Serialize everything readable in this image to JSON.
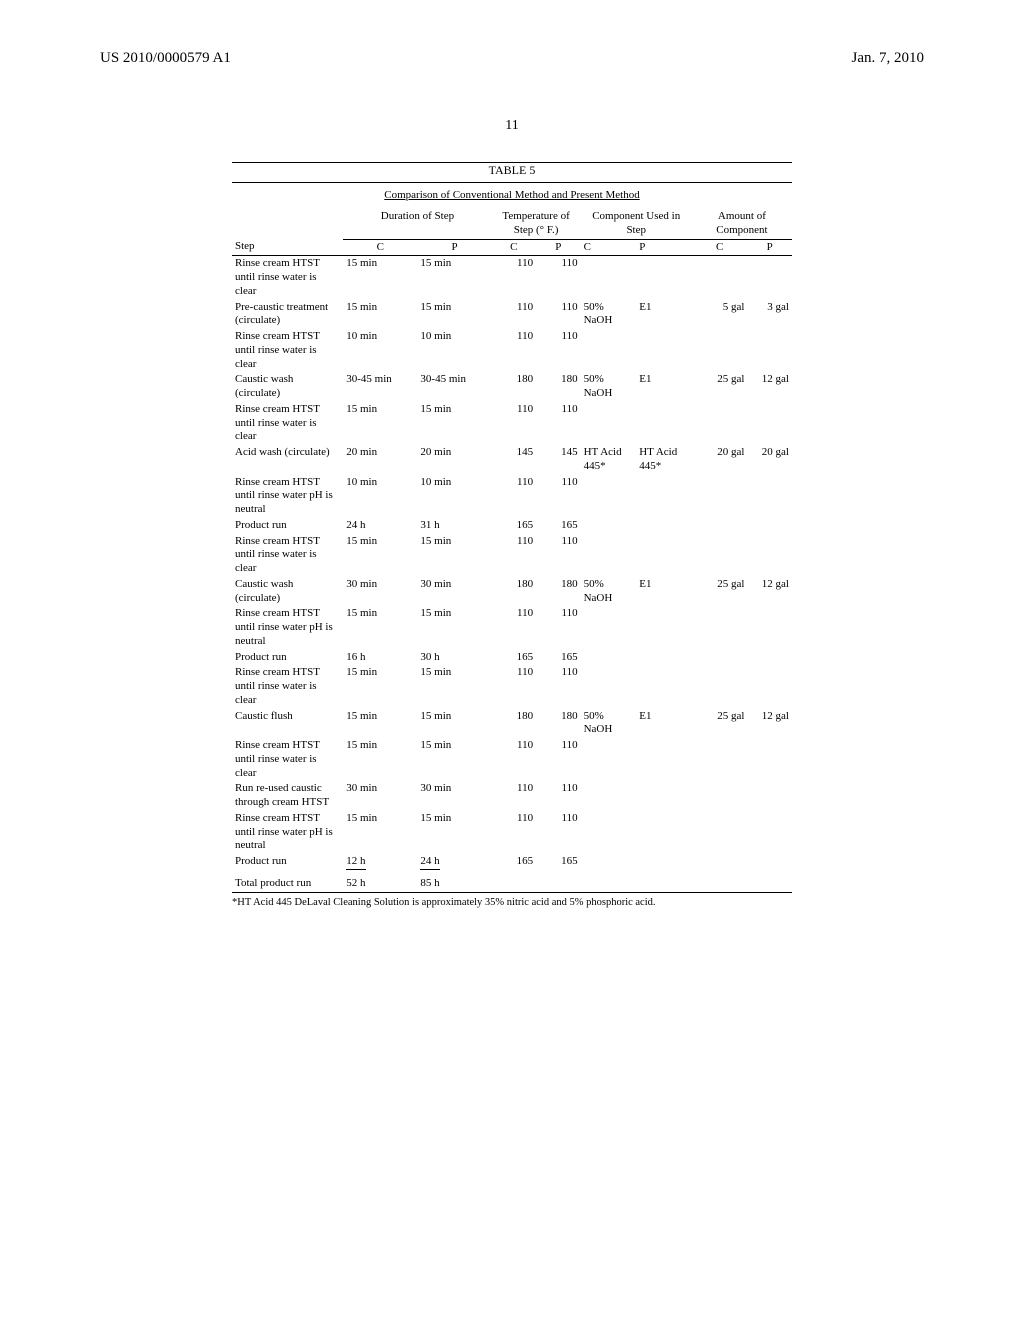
{
  "header": {
    "left": "US 2010/0000579 A1",
    "right": "Jan. 7, 2010"
  },
  "page_number": "11",
  "table": {
    "label": "TABLE 5",
    "caption": "Comparison of Conventional Method and Present Method",
    "group_headers": {
      "duration": "Duration of Step",
      "temperature": "Temperature of Step (° F.)",
      "component": "Component Used in Step",
      "amount": "Amount of Component"
    },
    "col_headers": {
      "step": "Step",
      "c": "C",
      "p": "P"
    },
    "rows": [
      {
        "step": "Rinse cream HTST until rinse water is clear",
        "dc": "15 min",
        "dp": "15 min",
        "tc": "110",
        "tp": "110",
        "cc": "",
        "cp": "",
        "ac": "",
        "ap": ""
      },
      {
        "step": "Pre-caustic treatment (circulate)",
        "dc": "15 min",
        "dp": "15 min",
        "tc": "110",
        "tp": "110",
        "cc": "50% NaOH",
        "cp": "E1",
        "ac": "5 gal",
        "ap": "3 gal"
      },
      {
        "step": "Rinse cream HTST until rinse water is clear",
        "dc": "10 min",
        "dp": "10 min",
        "tc": "110",
        "tp": "110",
        "cc": "",
        "cp": "",
        "ac": "",
        "ap": ""
      },
      {
        "step": "Caustic wash (circulate)",
        "dc": "30-45 min",
        "dp": "30-45 min",
        "tc": "180",
        "tp": "180",
        "cc": "50% NaOH",
        "cp": "E1",
        "ac": "25 gal",
        "ap": "12 gal"
      },
      {
        "step": "Rinse cream HTST until rinse water is clear",
        "dc": "15 min",
        "dp": "15 min",
        "tc": "110",
        "tp": "110",
        "cc": "",
        "cp": "",
        "ac": "",
        "ap": ""
      },
      {
        "step": "Acid wash (circulate)",
        "dc": "20 min",
        "dp": "20 min",
        "tc": "145",
        "tp": "145",
        "cc": "HT Acid 445*",
        "cp": "HT Acid 445*",
        "ac": "20 gal",
        "ap": "20 gal"
      },
      {
        "step": "Rinse cream HTST until rinse water pH is neutral",
        "dc": "10 min",
        "dp": "10 min",
        "tc": "110",
        "tp": "110",
        "cc": "",
        "cp": "",
        "ac": "",
        "ap": ""
      },
      {
        "step": "Product run",
        "dc": "24 h",
        "dp": "31 h",
        "tc": "165",
        "tp": "165",
        "cc": "",
        "cp": "",
        "ac": "",
        "ap": ""
      },
      {
        "step": "Rinse cream HTST until rinse water is clear",
        "dc": "15 min",
        "dp": "15 min",
        "tc": "110",
        "tp": "110",
        "cc": "",
        "cp": "",
        "ac": "",
        "ap": ""
      },
      {
        "step": "Caustic wash (circulate)",
        "dc": "30 min",
        "dp": "30 min",
        "tc": "180",
        "tp": "180",
        "cc": "50% NaOH",
        "cp": "E1",
        "ac": "25 gal",
        "ap": "12 gal"
      },
      {
        "step": "Rinse cream HTST until rinse water pH is neutral",
        "dc": "15 min",
        "dp": "15 min",
        "tc": "110",
        "tp": "110",
        "cc": "",
        "cp": "",
        "ac": "",
        "ap": ""
      },
      {
        "step": "Product run",
        "dc": "16 h",
        "dp": "30 h",
        "tc": "165",
        "tp": "165",
        "cc": "",
        "cp": "",
        "ac": "",
        "ap": ""
      },
      {
        "step": "Rinse cream HTST until rinse water is clear",
        "dc": "15 min",
        "dp": "15 min",
        "tc": "110",
        "tp": "110",
        "cc": "",
        "cp": "",
        "ac": "",
        "ap": ""
      },
      {
        "step": "Caustic flush",
        "dc": "15 min",
        "dp": "15 min",
        "tc": "180",
        "tp": "180",
        "cc": "50% NaOH",
        "cp": "E1",
        "ac": "25 gal",
        "ap": "12 gal"
      },
      {
        "step": "Rinse cream HTST until rinse water is clear",
        "dc": "15 min",
        "dp": "15 min",
        "tc": "110",
        "tp": "110",
        "cc": "",
        "cp": "",
        "ac": "",
        "ap": ""
      },
      {
        "step": "Run re-used caustic through cream HTST",
        "dc": "30 min",
        "dp": "30 min",
        "tc": "110",
        "tp": "110",
        "cc": "",
        "cp": "",
        "ac": "",
        "ap": ""
      },
      {
        "step": "Rinse cream HTST until rinse water pH is neutral",
        "dc": "15 min",
        "dp": "15 min",
        "tc": "110",
        "tp": "110",
        "cc": "",
        "cp": "",
        "ac": "",
        "ap": ""
      },
      {
        "step": "Product run",
        "dc": "12 h",
        "dp": "24 h",
        "tc": "165",
        "tp": "165",
        "cc": "",
        "cp": "",
        "ac": "",
        "ap": "",
        "last": true
      }
    ],
    "total": {
      "label": "Total product run",
      "c": "52 h",
      "p": "85 h"
    },
    "footnote": "*HT Acid 445 DeLaval Cleaning Solution is approximately 35% nitric acid and 5% phosphoric acid."
  }
}
